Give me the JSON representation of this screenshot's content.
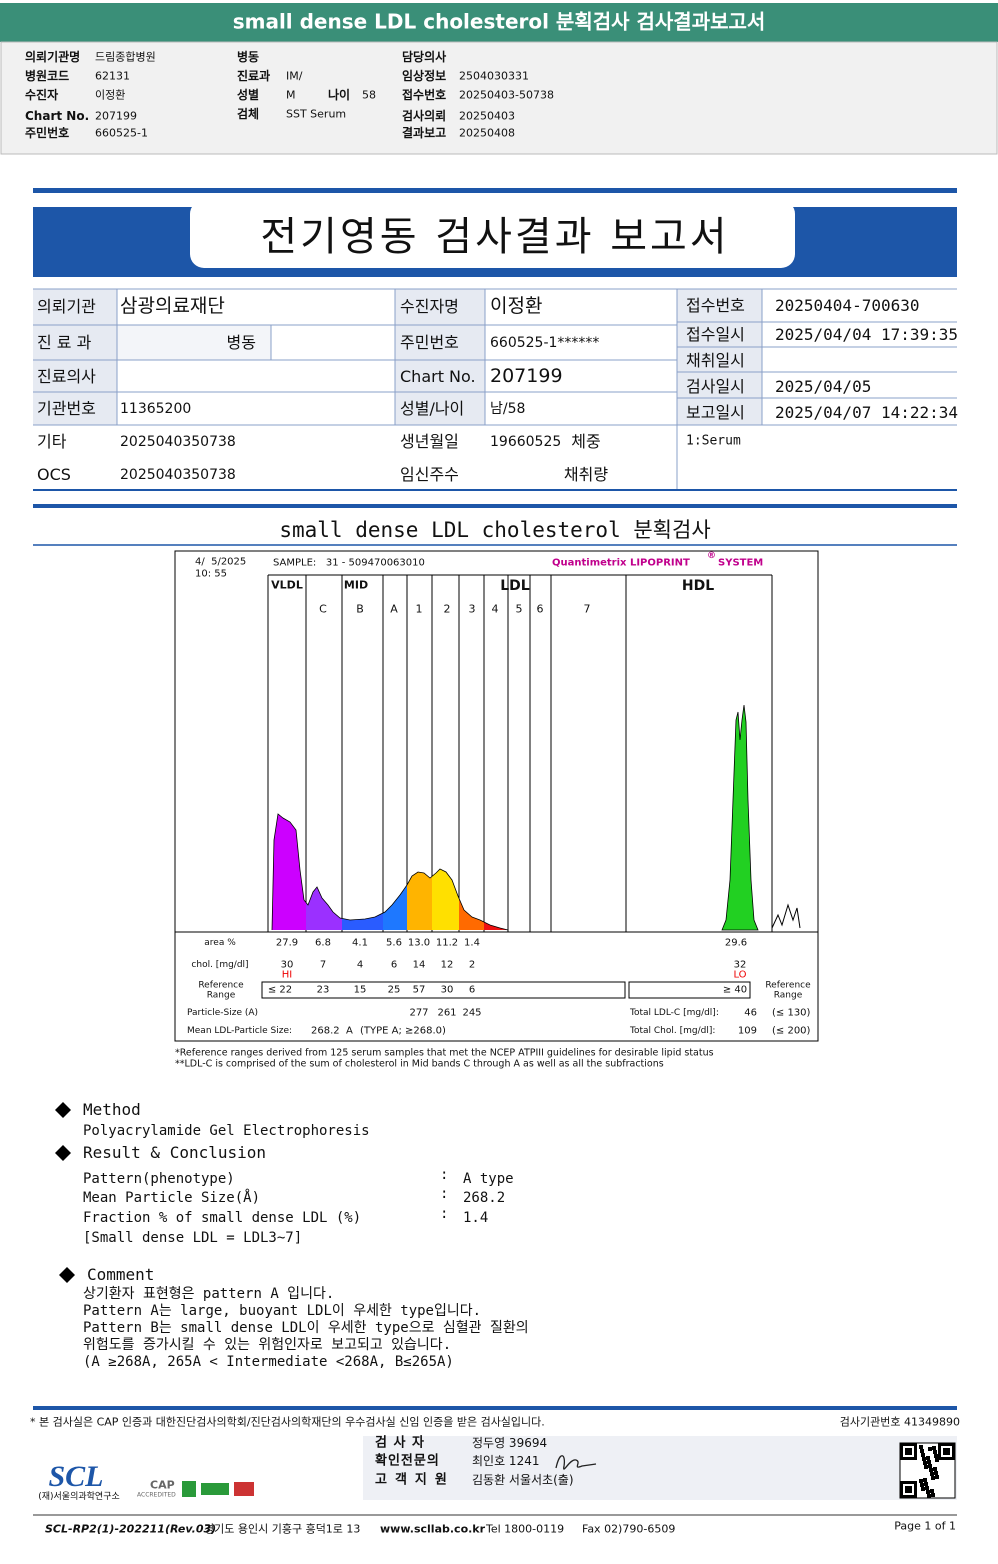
{
  "header": {
    "title": "small dense LDL cholesterol 분획검사 검사결과보고서"
  },
  "info": {
    "col1": [
      {
        "label": "의뢰기관명",
        "value": "드림종합병원"
      },
      {
        "label": "병원코드",
        "value": "62131"
      },
      {
        "label": "수진자",
        "value": "이정환"
      },
      {
        "label": "Chart No.",
        "value": "207199"
      },
      {
        "label": "주민번호",
        "value": "660525-1"
      }
    ],
    "col2": [
      {
        "label": "병동"
      },
      {
        "label": "진료과",
        "value": "IM/"
      },
      {
        "label": "성별",
        "value": "M"
      },
      {
        "label": "검체",
        "value": "SST Serum"
      }
    ],
    "age": {
      "label": "나이",
      "value": "58"
    },
    "col3": [
      {
        "label": "담당의사"
      },
      {
        "label": "임상정보",
        "value": "2504030331"
      },
      {
        "label": "접수번호",
        "value": "20250403-50738"
      },
      {
        "label": "검사의뢰",
        "value": "20250403"
      },
      {
        "label": "결과보고",
        "value": "20250408"
      }
    ]
  },
  "report": {
    "title": "전기영동 검사결과 보고서",
    "left": [
      {
        "label": "의뢰기관",
        "value": "삼광의료재단"
      },
      {
        "label": "진 료 과",
        "sub": "병동"
      },
      {
        "label": "진료의사"
      },
      {
        "label": "기관번호",
        "value": "11365200"
      },
      {
        "label": "기타",
        "value": "2025040350738"
      },
      {
        "label": "OCS",
        "value": "2025040350738"
      }
    ],
    "middle": [
      {
        "label": "수진자명",
        "value": "이정환"
      },
      {
        "label": "주민번호",
        "value": "660525-1******"
      },
      {
        "label": "Chart No.",
        "value": "207199"
      },
      {
        "label": "성별/나이",
        "value": "남/58"
      },
      {
        "label": "생년월일",
        "value": "19660525",
        "sub": "체중"
      },
      {
        "label": "임신주수",
        "sub": "채취량"
      }
    ],
    "right": [
      {
        "label": "접수번호",
        "value": "20250404-700630"
      },
      {
        "label": "접수일시",
        "value": "2025/04/04 17:39:35"
      },
      {
        "label": "채취일시"
      },
      {
        "label": "검사일시",
        "value": "2025/04/05"
      },
      {
        "label": "보고일시",
        "value": "2025/04/07 14:22:34"
      }
    ],
    "specimen": "1:Serum"
  },
  "section": {
    "title": "small dense LDL cholesterol 분획검사"
  },
  "lipoprint": {
    "date": "4/  5/2025",
    "time": "10: 55",
    "sample": "SAMPLE:   31 - 509470063010",
    "system": "Quantimetrix LIPOPRINT",
    "system_mark": "®",
    "system2": "SYSTEM",
    "groups": [
      "VLDL",
      "MID",
      "LDL",
      "HDL"
    ],
    "bands": [
      "C",
      "B",
      "A",
      "1",
      "2",
      "3",
      "4",
      "5",
      "6",
      "7"
    ],
    "area": {
      "label": "area %",
      "values": [
        "27.9",
        "6.8",
        "4.1",
        "5.6",
        "13.0",
        "11.2",
        "1.4"
      ],
      "hdl": "29.6"
    },
    "chol": {
      "label": "chol. [mg/dl]",
      "values": [
        "30",
        "7",
        "4",
        "6",
        "14",
        "12",
        "2"
      ],
      "hdl": "32"
    },
    "flags": {
      "vldl": "HI",
      "hdl": "LO"
    },
    "reference": {
      "label": "Reference Range",
      "values": [
        "≤ 22",
        "23",
        "15",
        "25",
        "57",
        "30",
        "6"
      ],
      "hdl": "≥ 40"
    },
    "particle": {
      "label": "Particle-Size (A)",
      "values": [
        "277",
        "261",
        "245"
      ]
    },
    "mean": {
      "label": "Mean LDL-Particle Size:",
      "value": "268.2  A",
      "type": "(TYPE A; ≥268.0)"
    },
    "totals": [
      {
        "label": "Total LDL-C [mg/dl]:",
        "value": "46",
        "range": "(≤ 130)"
      },
      {
        "label": "Total Chol. [mg/dl]:",
        "value": "109",
        "range": "(≤ 200)"
      }
    ]
  },
  "footnotes": [
    "*Reference ranges derived from 125 serum samples that met the NCEP ATPIII guidelines for desirable lipid status",
    "**LDL-C is comprised of the sum of cholesterol in Mid bands C through A as well as all the subfractions"
  ],
  "method": {
    "heading": "Method",
    "text": "Polyacrylamide Gel Electrophoresis"
  },
  "result": {
    "heading": "Result & Conclusion",
    "separator": ":",
    "rows": [
      {
        "label": "Pattern(phenotype)",
        "value": "A type"
      },
      {
        "label": "Mean Particle Size(Å)",
        "value": "268.2"
      },
      {
        "label": "Fraction % of small dense LDL (%)",
        "value": "1.4"
      }
    ],
    "note": "[Small dense LDL = LDL3~7]"
  },
  "comment": {
    "heading": "Comment",
    "lines": [
      "상기환자 표현형은 pattern A 입니다.",
      "Pattern A는 large, buoyant LDL이 우세한 type입니다.",
      "Pattern B는 small dense LDL이 우세한 type으로 심혈관 질환의",
      "위험도를 증가시킬 수 있는 위험인자로 보고되고 있습니다.",
      "(A ≥268A, 265A < Intermediate <268A, B≤265A)"
    ]
  },
  "footer": {
    "notice": "* 본 검사실은 CAP 인증과 대한진단검사의학회/진단검사의학재단의 우수검사실 신임 인증을 받은 검사실입니다.",
    "lab_number": "검사기관번호 41349890",
    "signers": [
      {
        "role": "검 사 자",
        "name": "정두영 39694"
      },
      {
        "role": "확인전문의",
        "name": "최인호 1241"
      },
      {
        "role": "고객지원",
        "name": "김동환 서울서초(출)"
      }
    ],
    "logo": "SCL",
    "org": "(재)서울의과학연구소",
    "cap": "CAP",
    "cap_sub": "ACCREDITED",
    "form": "SCL-RP2(1)-202211(Rev.03)",
    "address": "경기도 용인시 기흥구 흥덕1로 13",
    "web": "www.scllab.co.kr",
    "tel": "Tel 1800-0119",
    "fax": "Fax 02)790-6509",
    "page": "Page 1 of 1"
  }
}
